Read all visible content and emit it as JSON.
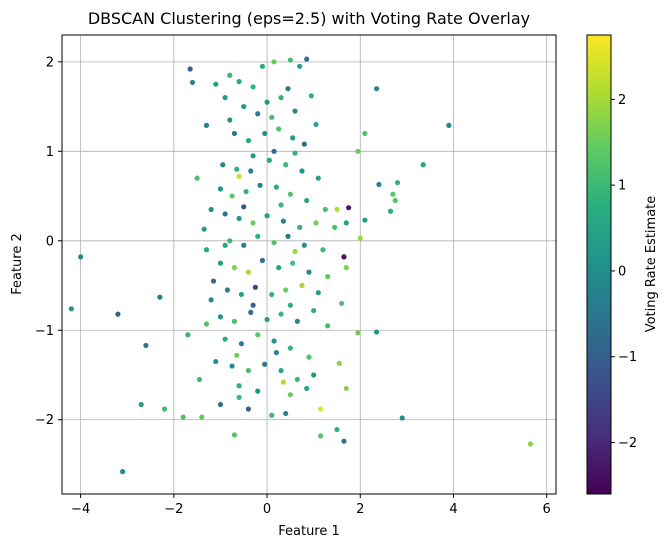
{
  "chart_data": {
    "type": "scatter",
    "title": "DBSCAN Clustering (eps=2.5) with Voting Rate Overlay",
    "xlabel": "Feature 1",
    "ylabel": "Feature 2",
    "xlim": [
      -4.4,
      6.2
    ],
    "ylim": [
      -2.83,
      2.3
    ],
    "xticks": [
      -4,
      -2,
      0,
      2,
      4,
      6
    ],
    "yticks": [
      -2,
      -1,
      0,
      1,
      2
    ],
    "grid": true,
    "colorbar": {
      "label": "Voting Rate Estimate",
      "range": [
        -2.6,
        2.75
      ],
      "ticks": [
        -2,
        -1,
        0,
        1,
        2
      ],
      "colormap": "viridis"
    },
    "point_color": "#2c8c8a",
    "points": [
      {
        "x": -3.1,
        "y": -2.58,
        "c": 0
      },
      {
        "x": -4.0,
        "y": -0.18,
        "c": -0.2
      },
      {
        "x": -4.2,
        "y": -0.76,
        "c": 0.2
      },
      {
        "x": -3.2,
        "y": -0.82,
        "c": -0.9
      },
      {
        "x": -2.6,
        "y": -1.17,
        "c": -0.5
      },
      {
        "x": -2.3,
        "y": -0.63,
        "c": -0.3
      },
      {
        "x": -2.7,
        "y": -1.83,
        "c": 0.3
      },
      {
        "x": -2.2,
        "y": -1.88,
        "c": 1.1
      },
      {
        "x": -1.8,
        "y": -1.97,
        "c": 1.2
      },
      {
        "x": -1.4,
        "y": -1.97,
        "c": 1.4
      },
      {
        "x": -1.7,
        "y": -1.05,
        "c": 0.9
      },
      {
        "x": 5.65,
        "y": -2.27,
        "c": 1.8
      },
      {
        "x": 2.9,
        "y": -1.98,
        "c": -0.1
      },
      {
        "x": 3.9,
        "y": 1.29,
        "c": -0.1
      },
      {
        "x": 3.35,
        "y": 0.85,
        "c": 0.5
      },
      {
        "x": 2.35,
        "y": 1.7,
        "c": -0.2
      },
      {
        "x": 2.1,
        "y": 1.2,
        "c": 1.2
      },
      {
        "x": 2.8,
        "y": 0.65,
        "c": 0.9
      },
      {
        "x": 2.7,
        "y": 0.52,
        "c": 1.4
      },
      {
        "x": 2.75,
        "y": 0.45,
        "c": 1.3
      },
      {
        "x": 2.4,
        "y": 0.63,
        "c": -0.3
      },
      {
        "x": 2.65,
        "y": 0.33,
        "c": 0.7
      },
      {
        "x": 2.1,
        "y": 0.23,
        "c": 0.3
      },
      {
        "x": 2.0,
        "y": 0.03,
        "c": 1.9
      },
      {
        "x": 2.35,
        "y": -1.02,
        "c": 0.2
      },
      {
        "x": 1.95,
        "y": -1.03,
        "c": 1.6
      },
      {
        "x": 1.7,
        "y": -1.65,
        "c": 1.7
      },
      {
        "x": 1.65,
        "y": -2.24,
        "c": -0.5
      },
      {
        "x": 1.5,
        "y": -2.11,
        "c": 0.8
      },
      {
        "x": 1.15,
        "y": -2.18,
        "c": 1.3
      },
      {
        "x": 1.15,
        "y": -1.88,
        "c": 2.5
      },
      {
        "x": 0.4,
        "y": -1.93,
        "c": -0.2
      },
      {
        "x": 0.1,
        "y": -1.95,
        "c": 1.0
      },
      {
        "x": -0.7,
        "y": -2.17,
        "c": 1.3
      },
      {
        "x": 0.35,
        "y": -1.58,
        "c": 2.1
      },
      {
        "x": 1.55,
        "y": -1.37,
        "c": 1.8
      },
      {
        "x": 1.95,
        "y": 1.0,
        "c": 1.5
      },
      {
        "x": 0.85,
        "y": 2.03,
        "c": -0.6
      },
      {
        "x": 0.5,
        "y": 2.02,
        "c": 1.1
      },
      {
        "x": 0.7,
        "y": 1.95,
        "c": 0.4
      },
      {
        "x": -1.65,
        "y": 1.92,
        "c": -0.9
      },
      {
        "x": -1.6,
        "y": 1.77,
        "c": -0.2
      },
      {
        "x": -1.3,
        "y": 1.29,
        "c": -0.4
      },
      {
        "x": -1.5,
        "y": 0.7,
        "c": 1.2
      },
      {
        "x": -1.2,
        "y": 0.35,
        "c": 0.0
      },
      {
        "x": -1.35,
        "y": 0.13,
        "c": 0.4
      },
      {
        "x": -1.3,
        "y": -0.1,
        "c": 0.6
      },
      {
        "x": -1.15,
        "y": -0.45,
        "c": -0.8
      },
      {
        "x": -1.2,
        "y": -0.66,
        "c": -0.2
      },
      {
        "x": -1.3,
        "y": -0.93,
        "c": 1.3
      },
      {
        "x": -1.45,
        "y": -1.55,
        "c": 1.0
      },
      {
        "x": -1.1,
        "y": -1.35,
        "c": 0.1
      },
      {
        "x": -1.0,
        "y": -1.83,
        "c": -0.6
      },
      {
        "x": -0.6,
        "y": -1.75,
        "c": 1.0
      },
      {
        "x": -0.4,
        "y": -1.88,
        "c": -0.9
      },
      {
        "x": -0.9,
        "y": 1.6,
        "c": 0.4
      },
      {
        "x": -0.8,
        "y": 1.85,
        "c": 1.0
      },
      {
        "x": -0.6,
        "y": 1.78,
        "c": 0.6
      },
      {
        "x": -0.3,
        "y": 1.72,
        "c": 0.9
      },
      {
        "x": -0.1,
        "y": 1.95,
        "c": 0.7
      },
      {
        "x": 0.15,
        "y": 2.0,
        "c": 1.5
      },
      {
        "x": -0.5,
        "y": 1.5,
        "c": 0.2
      },
      {
        "x": -0.2,
        "y": 1.42,
        "c": -0.3
      },
      {
        "x": 0.0,
        "y": 1.55,
        "c": 0.3
      },
      {
        "x": 0.3,
        "y": 1.6,
        "c": 0.9
      },
      {
        "x": 0.6,
        "y": 1.45,
        "c": -0.2
      },
      {
        "x": 0.95,
        "y": 1.62,
        "c": 0.8
      },
      {
        "x": 1.05,
        "y": 1.3,
        "c": 0.5
      },
      {
        "x": -0.7,
        "y": 1.2,
        "c": -0.5
      },
      {
        "x": -0.4,
        "y": 1.12,
        "c": 0.6
      },
      {
        "x": -0.05,
        "y": 1.2,
        "c": 0.0
      },
      {
        "x": 0.25,
        "y": 1.25,
        "c": 1.2
      },
      {
        "x": 0.55,
        "y": 1.15,
        "c": 0.3
      },
      {
        "x": 0.8,
        "y": 1.08,
        "c": -0.7
      },
      {
        "x": -0.95,
        "y": 0.85,
        "c": -0.1
      },
      {
        "x": -0.65,
        "y": 0.8,
        "c": 0.8
      },
      {
        "x": -0.35,
        "y": 0.78,
        "c": -0.4
      },
      {
        "x": 0.05,
        "y": 0.9,
        "c": 0.6
      },
      {
        "x": 0.4,
        "y": 0.85,
        "c": 1.0
      },
      {
        "x": 0.75,
        "y": 0.78,
        "c": 0.1
      },
      {
        "x": 1.1,
        "y": 0.7,
        "c": 0.4
      },
      {
        "x": -0.6,
        "y": 0.72,
        "c": 2.3
      },
      {
        "x": -1.0,
        "y": 0.58,
        "c": 0.2
      },
      {
        "x": -0.75,
        "y": 0.5,
        "c": 1.4
      },
      {
        "x": -0.45,
        "y": 0.55,
        "c": 0.9
      },
      {
        "x": -0.15,
        "y": 0.62,
        "c": -0.2
      },
      {
        "x": 0.2,
        "y": 0.6,
        "c": 0.7
      },
      {
        "x": 0.5,
        "y": 0.52,
        "c": 1.3
      },
      {
        "x": 0.85,
        "y": 0.45,
        "c": 0.6
      },
      {
        "x": 1.25,
        "y": 0.35,
        "c": 1.1
      },
      {
        "x": 1.5,
        "y": 0.35,
        "c": 2.1
      },
      {
        "x": 1.75,
        "y": 0.37,
        "c": -2.2
      },
      {
        "x": -0.9,
        "y": 0.3,
        "c": -0.6
      },
      {
        "x": -0.6,
        "y": 0.25,
        "c": 0.2
      },
      {
        "x": -0.3,
        "y": 0.2,
        "c": 1.5
      },
      {
        "x": 0.0,
        "y": 0.28,
        "c": 0.4
      },
      {
        "x": 0.35,
        "y": 0.22,
        "c": -0.1
      },
      {
        "x": 0.7,
        "y": 0.15,
        "c": 0.9
      },
      {
        "x": 1.05,
        "y": 0.2,
        "c": 1.6
      },
      {
        "x": 1.45,
        "y": 0.15,
        "c": 1.2
      },
      {
        "x": 1.7,
        "y": 0.2,
        "c": 0.5
      },
      {
        "x": -0.8,
        "y": 0.0,
        "c": 1.0
      },
      {
        "x": -0.5,
        "y": -0.05,
        "c": -0.3
      },
      {
        "x": -0.2,
        "y": 0.05,
        "c": 0.8
      },
      {
        "x": 0.15,
        "y": -0.02,
        "c": 1.3
      },
      {
        "x": 0.45,
        "y": 0.05,
        "c": -0.5
      },
      {
        "x": 0.8,
        "y": -0.05,
        "c": 0.2
      },
      {
        "x": 1.2,
        "y": -0.1,
        "c": 1.0
      },
      {
        "x": 1.65,
        "y": -0.18,
        "c": -2.3
      },
      {
        "x": -1.0,
        "y": -0.25,
        "c": 0.3
      },
      {
        "x": -0.7,
        "y": -0.3,
        "c": 1.7
      },
      {
        "x": -0.4,
        "y": -0.35,
        "c": 2.0
      },
      {
        "x": -0.1,
        "y": -0.22,
        "c": -0.6
      },
      {
        "x": 0.25,
        "y": -0.3,
        "c": 0.6
      },
      {
        "x": 0.55,
        "y": -0.25,
        "c": 1.1
      },
      {
        "x": 0.9,
        "y": -0.35,
        "c": 0.0
      },
      {
        "x": 1.3,
        "y": -0.4,
        "c": 1.4
      },
      {
        "x": 1.7,
        "y": -0.3,
        "c": 1.7
      },
      {
        "x": -0.85,
        "y": -0.55,
        "c": -0.4
      },
      {
        "x": -0.55,
        "y": -0.6,
        "c": 0.5
      },
      {
        "x": -0.25,
        "y": -0.52,
        "c": -1.5
      },
      {
        "x": 0.1,
        "y": -0.6,
        "c": 0.9
      },
      {
        "x": 0.4,
        "y": -0.55,
        "c": 1.5
      },
      {
        "x": 0.75,
        "y": -0.5,
        "c": 2.0
      },
      {
        "x": 1.1,
        "y": -0.58,
        "c": 0.4
      },
      {
        "x": 1.6,
        "y": -0.7,
        "c": 1.3
      },
      {
        "x": -1.0,
        "y": -0.85,
        "c": 0.1
      },
      {
        "x": -0.7,
        "y": -0.9,
        "c": 1.2
      },
      {
        "x": -0.35,
        "y": -0.8,
        "c": -0.7
      },
      {
        "x": 0.0,
        "y": -0.88,
        "c": 0.4
      },
      {
        "x": 0.3,
        "y": -0.82,
        "c": 1.0
      },
      {
        "x": 0.65,
        "y": -0.9,
        "c": -0.2
      },
      {
        "x": 1.0,
        "y": -0.78,
        "c": 0.8
      },
      {
        "x": 1.3,
        "y": -0.95,
        "c": 1.1
      },
      {
        "x": -0.9,
        "y": -1.1,
        "c": 0.7
      },
      {
        "x": -0.55,
        "y": -1.15,
        "c": -0.3
      },
      {
        "x": -0.2,
        "y": -1.05,
        "c": 1.4
      },
      {
        "x": 0.15,
        "y": -1.12,
        "c": 0.2
      },
      {
        "x": 0.5,
        "y": -1.2,
        "c": 0.9
      },
      {
        "x": 0.9,
        "y": -1.3,
        "c": 1.3
      },
      {
        "x": -0.75,
        "y": -1.4,
        "c": 0.0
      },
      {
        "x": -0.4,
        "y": -1.45,
        "c": 1.1
      },
      {
        "x": -0.05,
        "y": -1.38,
        "c": -0.5
      },
      {
        "x": 0.3,
        "y": -1.45,
        "c": 0.6
      },
      {
        "x": 0.65,
        "y": -1.55,
        "c": 1.0
      },
      {
        "x": 1.0,
        "y": -1.5,
        "c": 0.3
      },
      {
        "x": -0.6,
        "y": -1.62,
        "c": 0.8
      },
      {
        "x": -0.2,
        "y": -1.68,
        "c": 0.1
      },
      {
        "x": 0.5,
        "y": -1.72,
        "c": 1.5
      },
      {
        "x": 0.85,
        "y": -1.65,
        "c": 0.5
      },
      {
        "x": -0.3,
        "y": 0.95,
        "c": 0.3
      },
      {
        "x": 0.15,
        "y": 1.0,
        "c": -0.8
      },
      {
        "x": 0.6,
        "y": 0.98,
        "c": 0.9
      },
      {
        "x": -0.8,
        "y": 1.35,
        "c": 0.1
      },
      {
        "x": 0.1,
        "y": 1.38,
        "c": 1.1
      },
      {
        "x": 0.45,
        "y": 1.7,
        "c": -0.4
      },
      {
        "x": -1.1,
        "y": 1.75,
        "c": 0.5
      },
      {
        "x": -0.5,
        "y": 0.38,
        "c": -1.2
      },
      {
        "x": 0.3,
        "y": 0.4,
        "c": 1.0
      },
      {
        "x": -0.9,
        "y": -0.05,
        "c": 0.6
      },
      {
        "x": 0.6,
        "y": -0.12,
        "c": 1.9
      },
      {
        "x": -0.3,
        "y": -0.72,
        "c": -1.0
      },
      {
        "x": 0.5,
        "y": -0.72,
        "c": 0.7
      },
      {
        "x": -0.65,
        "y": -1.28,
        "c": 1.6
      },
      {
        "x": 0.2,
        "y": -1.25,
        "c": -0.2
      }
    ]
  }
}
